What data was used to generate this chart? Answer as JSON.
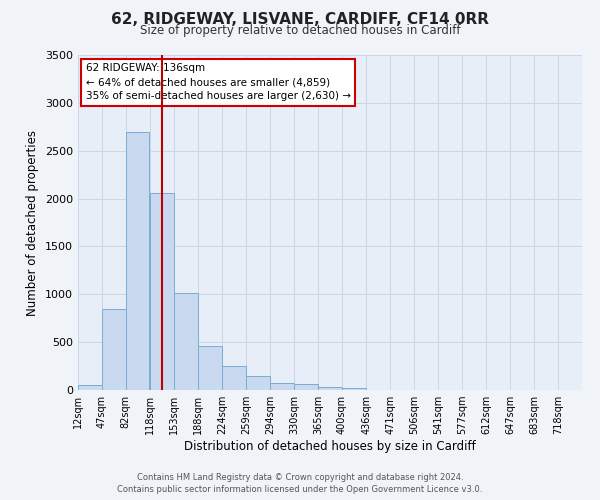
{
  "title": "62, RIDGEWAY, LISVANE, CARDIFF, CF14 0RR",
  "subtitle": "Size of property relative to detached houses in Cardiff",
  "xlabel": "Distribution of detached houses by size in Cardiff",
  "ylabel": "Number of detached properties",
  "categories": [
    "12sqm",
    "47sqm",
    "82sqm",
    "118sqm",
    "153sqm",
    "188sqm",
    "224sqm",
    "259sqm",
    "294sqm",
    "330sqm",
    "365sqm",
    "400sqm",
    "436sqm",
    "471sqm",
    "506sqm",
    "541sqm",
    "577sqm",
    "612sqm",
    "647sqm",
    "683sqm",
    "718sqm"
  ],
  "bar_edges": [
    12,
    47,
    82,
    118,
    153,
    188,
    224,
    259,
    294,
    330,
    365,
    400,
    436,
    471,
    506,
    541,
    577,
    612,
    647,
    683,
    718
  ],
  "bar_heights": [
    55,
    850,
    2700,
    2060,
    1010,
    460,
    250,
    150,
    70,
    60,
    30,
    20,
    0,
    0,
    0,
    0,
    0,
    0,
    0,
    0,
    0
  ],
  "bar_color": "#c9d9f0",
  "bar_edge_color": "#7aadd4",
  "grid_color": "#c8d8e8",
  "background_color": "#e8eef8",
  "fig_background": "#f0f4f8",
  "vline_x": 136,
  "vline_color": "#bb0000",
  "annotation_title": "62 RIDGEWAY: 136sqm",
  "annotation_line1": "← 64% of detached houses are smaller (4,859)",
  "annotation_line2": "35% of semi-detached houses are larger (2,630) →",
  "annotation_box_color": "#ffffff",
  "annotation_box_edge": "#cc0000",
  "ylim": [
    0,
    3500
  ],
  "yticks": [
    0,
    500,
    1000,
    1500,
    2000,
    2500,
    3000,
    3500
  ],
  "footer1": "Contains HM Land Registry data © Crown copyright and database right 2024.",
  "footer2": "Contains public sector information licensed under the Open Government Licence v3.0."
}
